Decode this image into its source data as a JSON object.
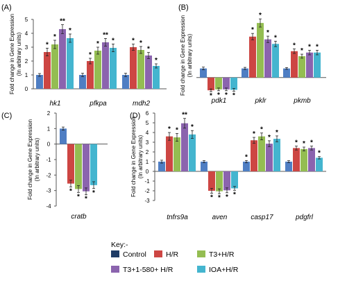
{
  "colors": {
    "Control": "#4f7ec3",
    "H/R": "#cd4643",
    "T3+H/R": "#94bd52",
    "T3+1-580+ H/R": "#8b64ae",
    "IOA+H/R": "#44b5cf",
    "legend_control_swatch": "#1f3c66"
  },
  "legend": {
    "title": "Key:-",
    "items": [
      "Control",
      "H/R",
      "T3+H/R",
      "T3+1-580+ H/R",
      "IOA+H/R"
    ]
  },
  "chart_data": [
    {
      "panel": "(A)",
      "type": "bar",
      "ylabel": "Fold change in Gene Expression (In arbitrary units)",
      "ylim": [
        0,
        5
      ],
      "yticks": [
        "0",
        "1",
        "2",
        "3",
        "4",
        "5"
      ],
      "categories": [
        "hk1",
        "pfkpa",
        "mdh2"
      ],
      "series": [
        {
          "name": "Control",
          "values": [
            1.0,
            1.0,
            1.0
          ],
          "errors": [
            0.1,
            0.12,
            0.12
          ]
        },
        {
          "name": "H/R",
          "values": [
            2.65,
            2.0,
            3.0
          ],
          "errors": [
            0.28,
            0.2,
            0.22
          ]
        },
        {
          "name": "T3+H/R",
          "values": [
            3.2,
            2.75,
            2.8
          ],
          "errors": [
            0.3,
            0.25,
            0.25
          ]
        },
        {
          "name": "T3+1-580+ H/R",
          "values": [
            4.3,
            3.35,
            2.4
          ],
          "errors": [
            0.32,
            0.28,
            0.22
          ]
        },
        {
          "name": "IOA+H/R",
          "values": [
            3.65,
            2.95,
            1.65
          ],
          "errors": [
            0.3,
            0.28,
            0.15
          ]
        }
      ],
      "stars": [
        [
          "",
          "*",
          "*",
          "**",
          "*"
        ],
        [
          "",
          "*",
          "*",
          "**",
          "*"
        ],
        [
          "",
          "*",
          "*",
          "*",
          "*"
        ]
      ]
    },
    {
      "panel": "(B)",
      "type": "bar",
      "ylabel": "Fold change in Gene Expression (In arbitrary units)",
      "ylim": [
        -2,
        7
      ],
      "yticks": [],
      "categories": [
        "pdk1",
        "pklr",
        "pkmb"
      ],
      "series": [
        {
          "name": "Control",
          "values": [
            1.0,
            1.0,
            1.0
          ],
          "errors": [
            0.15,
            0.12,
            0.1
          ]
        },
        {
          "name": "H/R",
          "values": [
            -1.4,
            4.5,
            2.9
          ],
          "errors": [
            0.15,
            0.35,
            0.25
          ]
        },
        {
          "name": "T3+H/R",
          "values": [
            -1.3,
            6.0,
            2.35
          ],
          "errors": [
            0.15,
            0.45,
            0.22
          ]
        },
        {
          "name": "T3+1-580+ H/R",
          "values": [
            -1.3,
            4.2,
            2.75
          ],
          "errors": [
            0.15,
            0.35,
            0.25
          ]
        },
        {
          "name": "IOA+H/R",
          "values": [
            -1.35,
            3.7,
            2.75
          ],
          "errors": [
            0.15,
            0.3,
            0.25
          ]
        }
      ],
      "stars": [
        [
          "",
          "*",
          "*",
          "*",
          "*"
        ],
        [
          "",
          "*",
          "*",
          "*",
          "*"
        ],
        [
          "",
          "*",
          "*",
          "*",
          "*"
        ]
      ]
    },
    {
      "panel": "(C)",
      "type": "bar",
      "ylabel": "Fold change in Gene Expression (In arbitrary units)",
      "ylim": [
        -4,
        2
      ],
      "yticks": [
        "2",
        "1",
        "0",
        "-1",
        "-2",
        "-3",
        "-4"
      ],
      "categories": [
        "cratb"
      ],
      "series": [
        {
          "name": "Control",
          "values": [
            1.0
          ],
          "errors": [
            0.1
          ]
        },
        {
          "name": "H/R",
          "values": [
            -2.55
          ],
          "errors": [
            0.22
          ]
        },
        {
          "name": "T3+H/R",
          "values": [
            -2.9
          ],
          "errors": [
            0.22
          ]
        },
        {
          "name": "T3+1-580+ H/R",
          "values": [
            -3.05
          ],
          "errors": [
            0.22
          ]
        },
        {
          "name": "IOA+H/R",
          "values": [
            -2.65
          ],
          "errors": [
            0.22
          ]
        }
      ],
      "stars": [
        [
          "",
          "*",
          "*",
          "*",
          "*"
        ]
      ]
    },
    {
      "panel": "(D)",
      "type": "bar",
      "ylabel": "Fold change in Gene Expression (In arbitrary units)",
      "ylim": [
        -3,
        6
      ],
      "yticks": [
        "6",
        "5",
        "4",
        "3",
        "2",
        "1",
        "0",
        "-1",
        "-2",
        "-3"
      ],
      "categories": [
        "tnfrs9a",
        "aven",
        "casp17",
        "pdgfrl"
      ],
      "series": [
        {
          "name": "Control",
          "values": [
            1.0,
            1.0,
            1.0,
            1.0
          ],
          "errors": [
            0.15,
            0.1,
            0.12,
            0.1
          ]
        },
        {
          "name": "H/R",
          "values": [
            3.6,
            -2.0,
            3.2,
            2.4
          ],
          "errors": [
            0.4,
            0.25,
            0.3,
            0.2
          ]
        },
        {
          "name": "T3+H/R",
          "values": [
            3.5,
            -2.05,
            3.6,
            2.3
          ],
          "errors": [
            0.4,
            0.25,
            0.35,
            0.2
          ]
        },
        {
          "name": "T3+1-580+ H/R",
          "values": [
            4.95,
            -1.95,
            2.85,
            2.4
          ],
          "errors": [
            0.5,
            0.25,
            0.3,
            0.2
          ]
        },
        {
          "name": "IOA+H/R",
          "values": [
            3.8,
            -1.75,
            3.35,
            1.4
          ],
          "errors": [
            0.4,
            0.2,
            0.3,
            0.12
          ]
        }
      ],
      "stars": [
        [
          "",
          "*",
          "*",
          "**",
          "*"
        ],
        [
          "",
          "*",
          "*",
          "*",
          "*"
        ],
        [
          "*",
          "*",
          "*",
          "*",
          "*"
        ],
        [
          "",
          "*",
          "*",
          "*",
          "*"
        ]
      ]
    }
  ]
}
